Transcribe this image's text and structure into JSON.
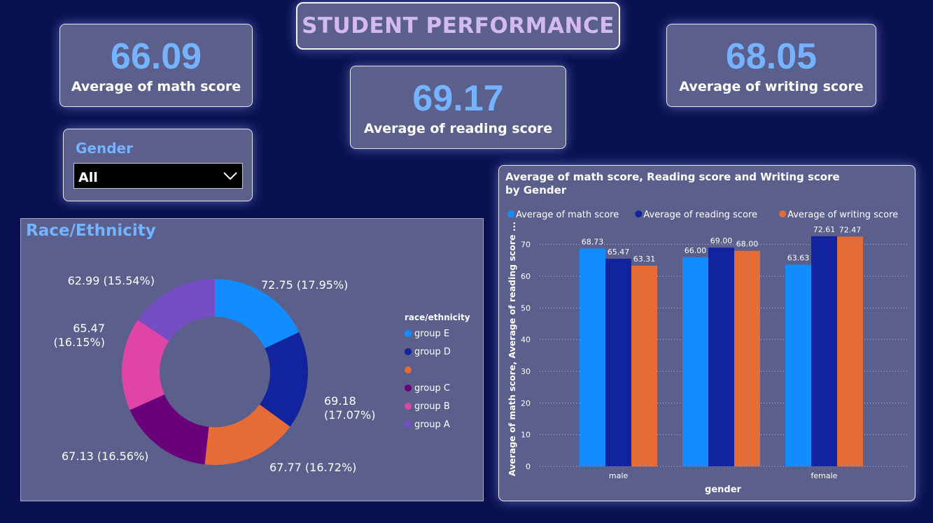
{
  "header": {
    "title": "STUDENT PERFORMANCE"
  },
  "kpis": {
    "math": {
      "value": "66.09",
      "label": "Average of math score"
    },
    "reading": {
      "value": "69.17",
      "label": "Average of reading score"
    },
    "writing": {
      "value": "68.05",
      "label": "Average of writing score"
    }
  },
  "slicer": {
    "title": "Gender",
    "value": "All",
    "icon": "chevron-down-icon"
  },
  "colors": {
    "background": "#0a1150",
    "panel": "#5b5f8c",
    "accent": "#75b2ff",
    "title": "#d4b8f2"
  },
  "chart_data": [
    {
      "type": "pie",
      "title": "Race/Ethnicity",
      "legend_title": "race/ethnicity",
      "legend_position": "right",
      "slices": [
        {
          "name": "group E",
          "value": 72.75,
          "percent": "17.95%",
          "label": "72.75 (17.95%)",
          "color": "#118dff"
        },
        {
          "name": "group D",
          "value": 69.18,
          "percent": "17.07%",
          "label": "69.18 (17.07%)",
          "color": "#12239e"
        },
        {
          "name": "",
          "value": 67.77,
          "percent": "16.72%",
          "label": "67.77 (16.72%)",
          "color": "#e66c37"
        },
        {
          "name": "group C",
          "value": 67.13,
          "percent": "16.56%",
          "label": "67.13 (16.56%)",
          "color": "#6b007b"
        },
        {
          "name": "group B",
          "value": 65.47,
          "percent": "16.15%",
          "label": "65.47 (16.15%)",
          "color": "#e044a7"
        },
        {
          "name": "group A",
          "value": 62.99,
          "percent": "15.54%",
          "label": "62.99 (15.54%)",
          "color": "#744ec2"
        }
      ],
      "label_lines": {
        "group E": [
          "72.75 (17.95%)"
        ],
        "group D": [
          "69.18",
          "(17.07%)"
        ],
        "": [
          "67.77 (16.72%)"
        ],
        "group C": [
          "67.13 (16.56%)"
        ],
        "group B": [
          "65.47",
          "(16.15%)"
        ],
        "group A": [
          "62.99 (15.54%)"
        ]
      }
    },
    {
      "type": "bar",
      "title": "Average of math score, Reading score and Writing score by Gender",
      "xlabel": "gender",
      "ylabel": "Average of math score, Average of reading score ...",
      "categories": [
        "male",
        "",
        "female"
      ],
      "ylim": [
        0,
        75
      ],
      "yticks": [
        "0",
        "10",
        "20",
        "30",
        "40",
        "50",
        "60",
        "70"
      ],
      "grid": true,
      "legend_position": "top",
      "series": [
        {
          "name": "Average of math score",
          "color": "#118dff",
          "values": [
            68.73,
            66.0,
            63.63
          ],
          "labels": [
            "68.73",
            "66.00",
            "63.63"
          ]
        },
        {
          "name": "Average of reading score",
          "color": "#12239e",
          "values": [
            65.47,
            69.0,
            72.61
          ],
          "labels": [
            "65.47",
            "69.00",
            "72.61"
          ]
        },
        {
          "name": "Average of writing score",
          "color": "#e66c37",
          "values": [
            63.31,
            68.0,
            72.47
          ],
          "labels": [
            "63.31",
            "68.00",
            "72.47"
          ]
        }
      ]
    }
  ]
}
